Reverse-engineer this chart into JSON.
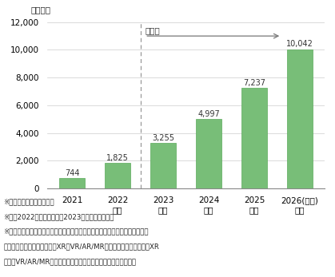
{
  "categories": [
    "2021",
    "2022\n見込",
    "2023\n予測",
    "2024\n予測",
    "2025\n予測",
    "2026(年度)\n予測"
  ],
  "values": [
    744,
    1825,
    3255,
    4997,
    7237,
    10042
  ],
  "bar_color": "#78be78",
  "bar_edge_color": "#5aaa5a",
  "ylim": [
    0,
    12000
  ],
  "yticks": [
    0,
    2000,
    4000,
    6000,
    8000,
    10000,
    12000
  ],
  "ylabel": "（億円）",
  "forecast_label": "予測値",
  "value_labels": [
    "744",
    "1,825",
    "3,255",
    "4,997",
    "7,237",
    "10,042"
  ],
  "background_color": "#ffffff",
  "grid_color": "#cccccc",
  "note1": "※１　事業者売上高ベース",
  "note2": "※２　2022年度は見込値、2023年度以降は予測値",
  "note3": "※３　市場規模はメタバースプラットフォーム、プラットフォーム以外（コン",
  "note4": "　　テンツ、インフラ等）、XR（VR/AR/MR）機器の合算値。なお、XR",
  "note5": "　　（VR/AR/MR）機器のみ、販売価格ベースで算出している。"
}
